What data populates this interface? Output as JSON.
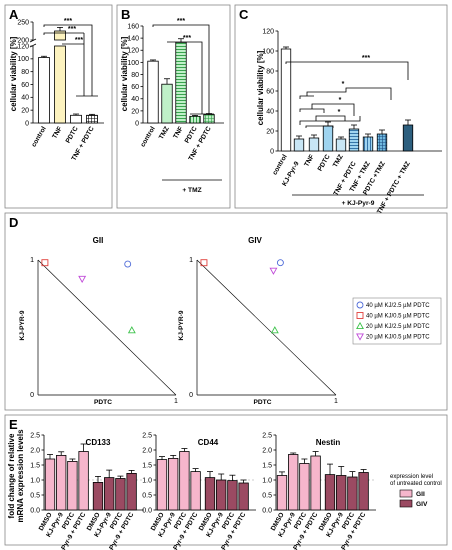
{
  "panels": {
    "A": "A",
    "B": "B",
    "C": "C",
    "D": "D",
    "E": "E"
  },
  "chart_data": [
    {
      "panel": "A",
      "type": "bar",
      "ylabel": "cellular viability [%]",
      "yticks": [
        0,
        20,
        40,
        60,
        80,
        100,
        120,
        200,
        250
      ],
      "categories": [
        "control",
        "TNF",
        "PDTC",
        "TNF + PDTC"
      ],
      "values": [
        102,
        225,
        12,
        12
      ],
      "errors": [
        2,
        10,
        2,
        1.5
      ],
      "significance": [
        "***",
        "***",
        "***"
      ]
    },
    {
      "panel": "B",
      "type": "bar",
      "ylabel": "cellular viability [%]",
      "yticks": [
        0,
        20,
        40,
        60,
        80,
        100,
        120,
        140,
        160
      ],
      "categories": [
        "control",
        "TMZ",
        "TNF",
        "PDTC",
        "TNF + PDTC"
      ],
      "values": [
        102,
        64,
        133,
        11,
        14
      ],
      "errors": [
        2,
        9,
        6,
        1.5,
        1.5
      ],
      "group_label": "+ TMZ",
      "significance": [
        "***",
        "***"
      ]
    },
    {
      "panel": "C",
      "type": "bar",
      "ylabel": "cellular viability [%]",
      "yticks": [
        0,
        20,
        40,
        60,
        80,
        100,
        120
      ],
      "categories": [
        "control",
        "KJ-Pyr-9",
        "TNF",
        "PDTC",
        "TMZ",
        "TNF + PDTC",
        "TNF + TMZ",
        "PDTC +TMZ",
        "TNF + PDTC + TMZ"
      ],
      "values": [
        102,
        12,
        13,
        25,
        12,
        22,
        14,
        17,
        26
      ],
      "errors": [
        2,
        3,
        3,
        4,
        2,
        4,
        3,
        4,
        5
      ],
      "group_label": "+ KJ-Pyr-9",
      "significance": [
        "*",
        "*",
        "*",
        "***"
      ]
    },
    {
      "panel": "D",
      "type": "scatter",
      "subplots": [
        {
          "title": "GII",
          "xlabel": "PDTC",
          "ylabel": "KJ-PYR-9",
          "points": [
            {
              "x": 0.65,
              "y": 0.97
            },
            {
              "x": 0.05,
              "y": 0.98
            },
            {
              "x": 0.68,
              "y": 0.48
            },
            {
              "x": 0.32,
              "y": 0.86
            }
          ]
        },
        {
          "title": "GIV",
          "xlabel": "PDTC",
          "ylabel": "KJ-PYR-9",
          "points": [
            {
              "x": 0.6,
              "y": 0.98
            },
            {
              "x": 0.05,
              "y": 0.98
            },
            {
              "x": 0.56,
              "y": 0.48
            },
            {
              "x": 0.55,
              "y": 0.92
            }
          ]
        }
      ],
      "axis_ticks": {
        "zero": "0",
        "one": "1"
      },
      "legend": [
        {
          "label": "40 µM KJ/2.5 µM PDTC",
          "marker": "circle",
          "color": "#4f6bd8"
        },
        {
          "label": "40 µM KJ/0.5 µM PDTC",
          "marker": "square",
          "color": "#e0403c"
        },
        {
          "label": "20 µM KJ/2.5 µM PDTC",
          "marker": "triangle-up",
          "color": "#3cc24a"
        },
        {
          "label": "20 µM KJ/0.5 µM PDTC",
          "marker": "triangle-down",
          "color": "#c04ad8"
        }
      ]
    },
    {
      "panel": "E",
      "type": "bar",
      "ylabel": [
        "fold change of relative",
        "mRNA expression levels"
      ],
      "yticks": [
        0.0,
        0.5,
        1.0,
        1.5,
        2.0,
        2.5
      ],
      "ylim": [
        0,
        2.5
      ],
      "categories": [
        "DMSO",
        "KJ-Pyr-9",
        "PDTC",
        "KJ-Pyr-9 + PDTC"
      ],
      "genes": [
        {
          "title": "CD133",
          "GII": [
            1.7,
            1.82,
            1.62,
            1.95
          ],
          "GII_err": [
            0.15,
            0.12,
            0.08,
            0.25
          ],
          "GIV": [
            0.92,
            1.08,
            1.05,
            1.22
          ],
          "GIV_err": [
            0.2,
            0.25,
            0.08,
            0.1
          ]
        },
        {
          "title": "CD44",
          "GII": [
            1.68,
            1.72,
            1.95,
            1.28
          ],
          "GII_err": [
            0.1,
            0.1,
            0.1,
            0.1
          ],
          "GIV": [
            1.08,
            1.0,
            0.98,
            0.9
          ],
          "GIV_err": [
            0.2,
            0.2,
            0.18,
            0.1
          ]
        },
        {
          "title": "Nestin",
          "GII": [
            1.15,
            1.85,
            1.55,
            1.8
          ],
          "GII_err": [
            0.12,
            0.05,
            0.15,
            0.15
          ],
          "GIV": [
            1.18,
            1.15,
            1.1,
            1.25
          ],
          "GIV_err": [
            0.35,
            0.3,
            0.18,
            0.1
          ]
        }
      ],
      "annotation": [
        "expression level",
        "of untreated control"
      ],
      "legend": [
        {
          "label": "GII",
          "color": "#f6b6cc"
        },
        {
          "label": "GIV",
          "color": "#9b4a62"
        }
      ]
    }
  ]
}
